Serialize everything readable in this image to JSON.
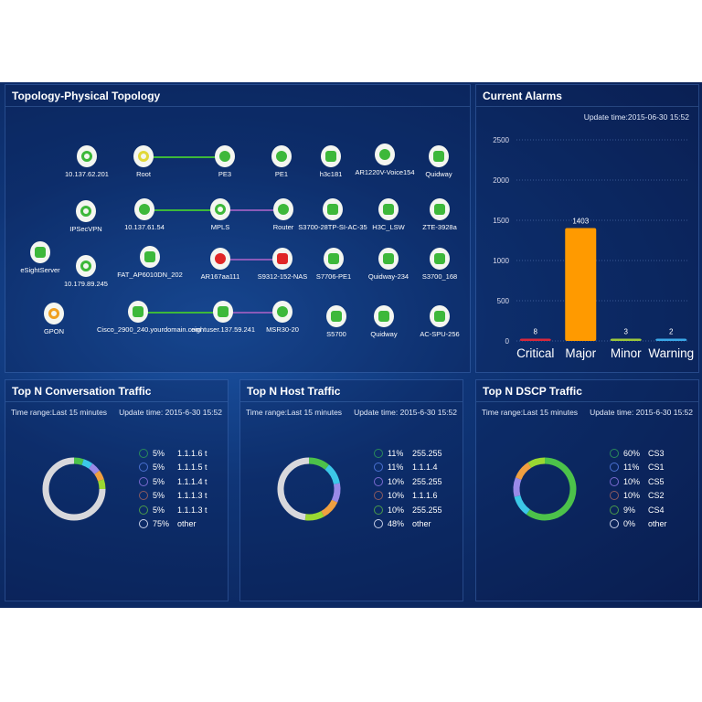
{
  "topology": {
    "title": "Topology-Physical Topology",
    "nodes": [
      {
        "label": "10.137.62.201",
        "type": "hub",
        "color": "#3db83a"
      },
      {
        "label": "Root",
        "type": "hub",
        "color": "#e1d83a"
      },
      {
        "label": "PE3",
        "type": "router",
        "color": "#3db83a"
      },
      {
        "label": "PE1",
        "type": "router",
        "color": "#3db83a"
      },
      {
        "label": "h3c181",
        "type": "server",
        "color": "#3db83a"
      },
      {
        "label": "AR1220V-Voice154",
        "type": "router",
        "color": "#3db83a"
      },
      {
        "label": "Quidway",
        "type": "switch",
        "color": "#3db83a"
      },
      {
        "label": "IPSecVPN",
        "type": "hub",
        "color": "#3db83a"
      },
      {
        "label": "10.137.61.54",
        "type": "router",
        "color": "#3db83a"
      },
      {
        "label": "MPLS",
        "type": "hub",
        "color": "#3db83a"
      },
      {
        "label": "Router",
        "type": "router",
        "color": "#3db83a"
      },
      {
        "label": "S3700-28TP-SI-AC-35",
        "type": "switch",
        "color": "#3db83a"
      },
      {
        "label": "H3C_LSW",
        "type": "switch",
        "color": "#3db83a"
      },
      {
        "label": "ZTE-3928a",
        "type": "switch",
        "color": "#3db83a"
      },
      {
        "label": "eSightServer",
        "type": "server",
        "color": "#3db83a"
      },
      {
        "label": "10.179.89.245",
        "type": "hub",
        "color": "#3db83a"
      },
      {
        "label": "FAT_AP6010DN_202",
        "type": "ap",
        "color": "#3db83a"
      },
      {
        "label": "AR167aa111",
        "type": "router",
        "color": "#e02626"
      },
      {
        "label": "S9312-152-NAS",
        "type": "server",
        "color": "#e02626"
      },
      {
        "label": "S7706-PE1",
        "type": "server",
        "color": "#3db83a"
      },
      {
        "label": "Quidway-234",
        "type": "switch",
        "color": "#3db83a"
      },
      {
        "label": "S3700_168",
        "type": "switch",
        "color": "#3db83a"
      },
      {
        "label": "GPON",
        "type": "hub",
        "color": "#f0a020"
      },
      {
        "label": "Cisco_2900_240.yourdomain.com",
        "type": "switch",
        "color": "#3db83a"
      },
      {
        "label": "eightuser.137.59.241",
        "type": "switch",
        "color": "#3db83a"
      },
      {
        "label": "MSR30-20",
        "type": "router",
        "color": "#3db83a"
      },
      {
        "label": "S5700",
        "type": "switch",
        "color": "#3db83a"
      },
      {
        "label": "Quidway",
        "type": "switch",
        "color": "#3db83a"
      },
      {
        "label": "AC-SPU-256",
        "type": "switch",
        "color": "#3db83a"
      }
    ]
  },
  "alarms": {
    "title": "Current Alarms",
    "update": "Update time:2015-06-30 15:52",
    "chart_data": {
      "type": "bar",
      "categories": [
        "Critical",
        "Major",
        "Minor",
        "Warning"
      ],
      "values": [
        8,
        1403,
        3,
        2
      ],
      "colors": [
        "#d8283c",
        "#ff9a00",
        "#9cc83c",
        "#3aa8e8"
      ],
      "ylim": [
        0,
        2500
      ],
      "yticks": [
        0,
        500,
        1000,
        1500,
        2000,
        2500
      ],
      "grid": true
    }
  },
  "traffic": [
    {
      "title": "Top N Conversation Traffic",
      "range": "Time range:Last 15 minutes",
      "update": "Update time: 2015-6-30 15:52",
      "chart_data": {
        "type": "pie",
        "labels": [
          "1.1.1.6 t",
          "1.1.1.5 t",
          "1.1.1.4 t",
          "1.1.1.3 t",
          "1.1.1.3 t",
          "other"
        ],
        "values": [
          5,
          5,
          5,
          5,
          5,
          75
        ],
        "pct": [
          "5%",
          "5%",
          "5%",
          "5%",
          "5%",
          "75%"
        ]
      }
    },
    {
      "title": "Top N Host Traffic",
      "range": "Time range:Last 15 minutes",
      "update": "Update time: 2015-6-30 15:52",
      "chart_data": {
        "type": "pie",
        "labels": [
          "255.255",
          "1.1.1.4",
          "255.255",
          "1.1.1.6",
          "255.255",
          "other"
        ],
        "values": [
          11,
          11,
          10,
          10,
          10,
          48
        ],
        "pct": [
          "11%",
          "11%",
          "10%",
          "10%",
          "10%",
          "48%"
        ]
      }
    },
    {
      "title": "Top N DSCP Traffic",
      "range": "Time range:Last 15 minutes",
      "update": "Update time: 2015-6-30 15:52",
      "chart_data": {
        "type": "pie",
        "labels": [
          "CS3",
          "CS1",
          "CS5",
          "CS2",
          "CS4",
          "other"
        ],
        "values": [
          60,
          11,
          10,
          10,
          9,
          0
        ],
        "pct": [
          "60%",
          "11%",
          "10%",
          "10%",
          "9%",
          "0%"
        ]
      }
    }
  ],
  "slice_colors": [
    "#4cc24a",
    "#3cc8e8",
    "#9a8ae8",
    "#f0a040",
    "#9ad832",
    "#d8d8dc"
  ],
  "legend_ring_colors": [
    "#2a8a5a",
    "#4a70d0",
    "#7a6ad0",
    "#8a5a60",
    "#4a9a4a",
    "#c8d0e8"
  ]
}
